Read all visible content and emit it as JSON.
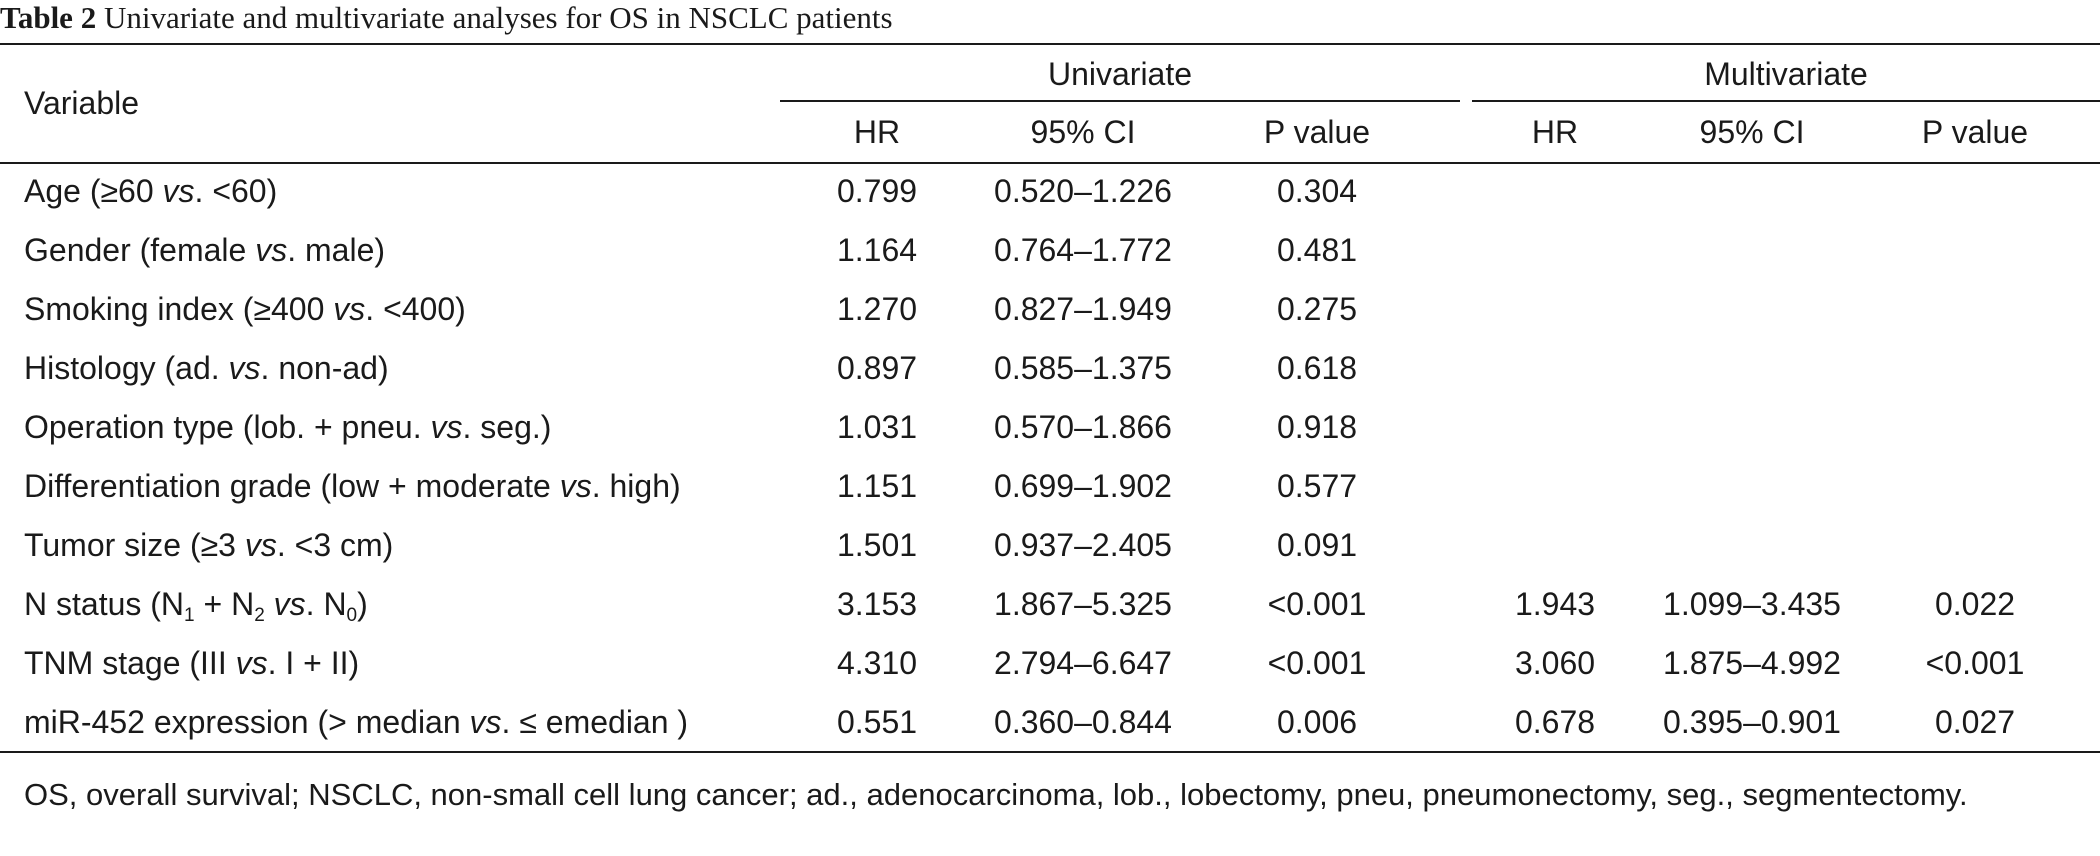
{
  "table": {
    "number": "Table 2",
    "title": "Univariate and multivariate analyses for OS in NSCLC patients",
    "header": {
      "variable": "Variable",
      "groups": [
        "Univariate",
        "Multivariate"
      ],
      "subcols": [
        "HR",
        "95% CI",
        "P value",
        "HR",
        "95% CI",
        "P value"
      ]
    },
    "rows": [
      {
        "label": [
          "Age (≥60 ",
          "vs",
          ". <60)"
        ],
        "uni": [
          "0.799",
          "0.520–1.226",
          "0.304"
        ],
        "multi": [
          "",
          "",
          ""
        ]
      },
      {
        "label": [
          "Gender (female ",
          "vs",
          ". male)"
        ],
        "uni": [
          "1.164",
          "0.764–1.772",
          "0.481"
        ],
        "multi": [
          "",
          "",
          ""
        ]
      },
      {
        "label": [
          "Smoking index (≥400 ",
          "vs",
          ". <400)"
        ],
        "uni": [
          "1.270",
          "0.827–1.949",
          "0.275"
        ],
        "multi": [
          "",
          "",
          ""
        ]
      },
      {
        "label": [
          "Histology (ad. ",
          "vs",
          ". non-ad)"
        ],
        "uni": [
          "0.897",
          "0.585–1.375",
          "0.618"
        ],
        "multi": [
          "",
          "",
          ""
        ]
      },
      {
        "label": [
          "Operation type (lob. + pneu. ",
          "vs",
          ". seg.)"
        ],
        "uni": [
          "1.031",
          "0.570–1.866",
          "0.918"
        ],
        "multi": [
          "",
          "",
          ""
        ]
      },
      {
        "label": [
          "Differentiation grade (low + moderate ",
          "vs",
          ". high)"
        ],
        "uni": [
          "1.151",
          "0.699–1.902",
          "0.577"
        ],
        "multi": [
          "",
          "",
          ""
        ]
      },
      {
        "label": [
          "Tumor size (≥3 ",
          "vs",
          ". <3 cm)"
        ],
        "uni": [
          "1.501",
          "0.937–2.405",
          "0.091"
        ],
        "multi": [
          "",
          "",
          ""
        ]
      },
      {
        "label": [
          "N status (N",
          "1",
          " + N",
          "2",
          " ",
          "vs",
          ". N",
          "0",
          ")"
        ],
        "uni": [
          "3.153",
          "1.867–5.325",
          "<0.001"
        ],
        "multi": [
          "1.943",
          "1.099–3.435",
          "0.022"
        ]
      },
      {
        "label": [
          "TNM stage (III ",
          "vs",
          ". I + II)"
        ],
        "uni": [
          "4.310",
          "2.794–6.647",
          "<0.001"
        ],
        "multi": [
          "3.060",
          "1.875–4.992",
          "<0.001"
        ]
      },
      {
        "label": [
          "miR-452 expression (> median ",
          "vs",
          ". ≤ emedian )"
        ],
        "uni": [
          "0.551",
          "0.360–0.844",
          "0.006"
        ],
        "multi": [
          "0.678",
          "0.395–0.901",
          "0.027"
        ]
      }
    ],
    "footnote": "OS, overall survival; NSCLC, non-small cell lung cancer; ad., adenocarcinoma, lob., lobectomy, pneu, pneumonectomy, seg., segmentectomy."
  }
}
